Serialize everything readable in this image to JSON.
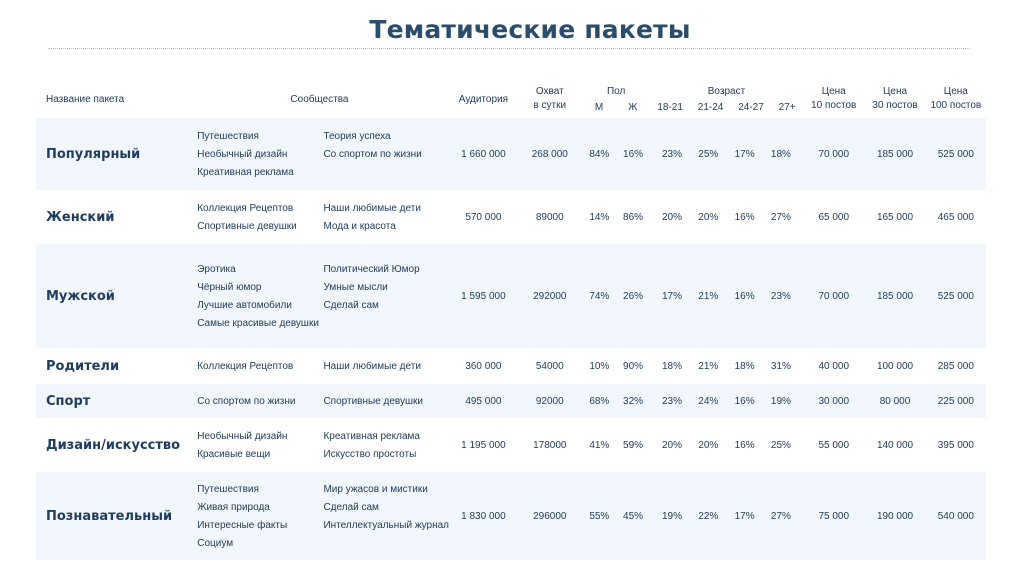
{
  "title": "Тематические пакеты",
  "headers": {
    "name": "Название пакета",
    "communities": "Сообщества",
    "audience": "Аудитория",
    "reach_1": "Охват",
    "reach_2": "в сутки",
    "gender": "Пол",
    "gender_m": "М",
    "gender_f": "Ж",
    "age": "Возраст",
    "age_groups": [
      "18-21",
      "21-24",
      "24-27",
      "27+"
    ],
    "price10_1": "Цена",
    "price10_2": "10 постов",
    "price30_1": "Цена",
    "price30_2": "30 постов",
    "price100_1": "Цена",
    "price100_2": "100 постов"
  },
  "rows": [
    {
      "name": "Популярный",
      "col1": [
        "Путешествия",
        "Необычный дизайн",
        "Креативная реклама"
      ],
      "col2": [
        "Теория успеха",
        "Со спортом по жизни"
      ],
      "audience": "1 660 000",
      "reach": "268 000",
      "m": "84%",
      "f": "16%",
      "ages": [
        "23%",
        "25%",
        "17%",
        "18%"
      ],
      "p10": "70 000",
      "p30": "185 000",
      "p100": "525 000"
    },
    {
      "name": "Женский",
      "col1": [
        "Коллекция Рецептов",
        "Спортивные девушки"
      ],
      "col2": [
        "Наши любимые дети",
        "Мода и красота"
      ],
      "audience": "570 000",
      "reach": "89000",
      "m": "14%",
      "f": "86%",
      "ages": [
        "20%",
        "20%",
        "16%",
        "27%"
      ],
      "p10": "65 000",
      "p30": "165 000",
      "p100": "465 000"
    },
    {
      "name": "Мужской",
      "col1": [
        "Эротика",
        "Чёрный юмор",
        "Лучшие автомобили",
        "Самые красивые девушки"
      ],
      "col2": [
        "Политический Юмор",
        "Умные мысли",
        "Сделай сам"
      ],
      "audience": "1 595 000",
      "reach": "292000",
      "m": "74%",
      "f": "26%",
      "ages": [
        "17%",
        "21%",
        "16%",
        "23%"
      ],
      "p10": "70 000",
      "p30": "185 000",
      "p100": "525 000"
    },
    {
      "name": "Родители",
      "col1": [
        "Коллекция Рецептов"
      ],
      "col2": [
        "Наши любимые дети"
      ],
      "audience": "360 000",
      "reach": "54000",
      "m": "10%",
      "f": "90%",
      "ages": [
        "18%",
        "21%",
        "18%",
        "31%"
      ],
      "p10": "40 000",
      "p30": "100 000",
      "p100": "285 000"
    },
    {
      "name": "Спорт",
      "col1": [
        "Со спортом по жизни"
      ],
      "col2": [
        "Спортивные девушки"
      ],
      "audience": "495 000",
      "reach": "92000",
      "m": "68%",
      "f": "32%",
      "ages": [
        "23%",
        "24%",
        "16%",
        "19%"
      ],
      "p10": "30 000",
      "p30": "80 000",
      "p100": "225 000"
    },
    {
      "name": "Дизайн/искусство",
      "col1": [
        "Необычный дизайн",
        "Красивые вещи"
      ],
      "col2": [
        "Креативная реклама",
        "Искусство простоты"
      ],
      "audience": "1 195 000",
      "reach": "178000",
      "m": "41%",
      "f": "59%",
      "ages": [
        "20%",
        "20%",
        "16%",
        "25%"
      ],
      "p10": "55 000",
      "p30": "140 000",
      "p100": "395 000"
    },
    {
      "name": "Познавательный",
      "col1": [
        "Путешествия",
        "Живая природа",
        "Интересные факты",
        "Социум"
      ],
      "col2": [
        "Мир ужасов и мистики",
        "Сделай сам",
        "Интеллектуальный журнал"
      ],
      "audience": "1 830 000",
      "reach": "296000",
      "m": "55%",
      "f": "45%",
      "ages": [
        "19%",
        "22%",
        "17%",
        "27%"
      ],
      "p10": "75 000",
      "p30": "190 000",
      "p100": "540 000"
    }
  ]
}
